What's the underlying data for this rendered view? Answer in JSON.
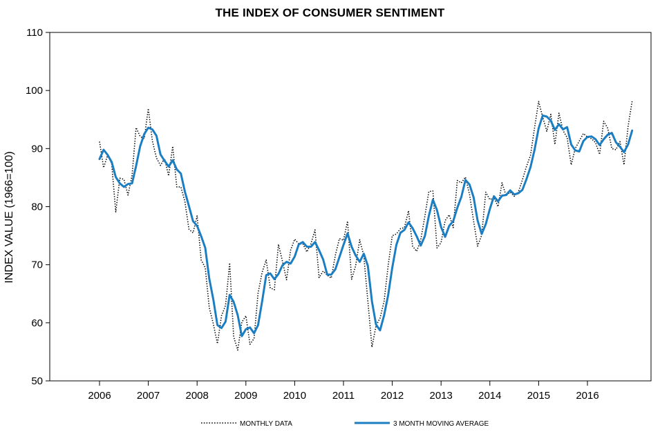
{
  "chart_data": {
    "type": "line",
    "title": "THE INDEX OF CONSUMER SENTIMENT",
    "ylabel": "INDEX VALUE (1966=100)",
    "xlabel": "",
    "ylim": [
      50,
      110
    ],
    "yticks": [
      50,
      60,
      70,
      80,
      90,
      100,
      110
    ],
    "xlim": [
      2005.9,
      2017.0
    ],
    "xticks": [
      2006,
      2007,
      2008,
      2009,
      2010,
      2011,
      2012,
      2013,
      2014,
      2015,
      2016
    ],
    "grid": false,
    "legend_position": "bottom",
    "series": [
      {
        "name": "MONTHLY DATA",
        "color": "#000000",
        "style": "dotted",
        "x_start": 2006.0,
        "x_step": 0.0833333,
        "values": [
          91.2,
          86.7,
          88.9,
          87.4,
          79.1,
          84.9,
          84.7,
          82.0,
          85.4,
          93.6,
          92.1,
          91.7,
          96.9,
          91.3,
          88.4,
          87.1,
          88.3,
          85.3,
          90.4,
          83.4,
          83.4,
          80.9,
          76.1,
          75.5,
          78.4,
          70.8,
          69.5,
          62.6,
          59.8,
          56.4,
          61.2,
          63.0,
          70.3,
          57.6,
          55.3,
          60.1,
          61.2,
          56.3,
          57.3,
          65.1,
          68.7,
          70.8,
          66.0,
          65.7,
          73.5,
          70.6,
          67.4,
          72.5,
          74.4,
          73.6,
          73.6,
          72.2,
          73.6,
          76.0,
          67.8,
          68.9,
          68.2,
          67.7,
          71.6,
          74.5,
          74.2,
          77.5,
          67.5,
          69.8,
          74.3,
          71.5,
          63.7,
          55.8,
          59.5,
          60.8,
          63.7,
          69.9,
          75.0,
          75.3,
          76.2,
          76.4,
          79.3,
          73.2,
          72.3,
          74.3,
          78.3,
          82.6,
          82.7,
          72.9,
          73.8,
          77.6,
          78.6,
          76.4,
          84.5,
          84.1,
          85.1,
          82.1,
          77.5,
          73.2,
          75.1,
          82.5,
          81.2,
          81.6,
          80.0,
          84.1,
          81.9,
          82.5,
          81.8,
          82.5,
          84.6,
          86.9,
          88.8,
          93.6,
          98.1,
          95.4,
          93.0,
          95.9,
          90.7,
          96.1,
          93.1,
          91.9,
          87.2,
          90.0,
          91.3,
          92.6,
          92.0,
          91.7,
          91.0,
          89.0,
          94.7,
          93.5,
          90.0,
          89.8,
          91.2,
          87.2,
          93.8,
          98.2
        ]
      },
      {
        "name": "3 MONTH MOVING AVERAGE",
        "color": "#1b7ec2",
        "style": "solid",
        "x_start": 2006.0,
        "x_step": 0.0833333,
        "values": [
          88.2,
          89.8,
          88.9,
          87.7,
          85.1,
          84.0,
          83.4,
          83.9,
          84.0,
          87.0,
          90.4,
          92.5,
          93.6,
          93.3,
          92.2,
          89.0,
          87.9,
          86.9,
          88.0,
          86.4,
          85.7,
          82.6,
          80.1,
          77.5,
          76.7,
          74.9,
          72.9,
          67.6,
          64.0,
          59.6,
          59.1,
          60.2,
          64.8,
          63.6,
          61.3,
          57.7,
          58.9,
          59.2,
          58.2,
          59.6,
          63.7,
          68.2,
          68.5,
          67.5,
          68.4,
          69.9,
          70.5,
          70.2,
          71.4,
          73.5,
          73.9,
          73.1,
          73.1,
          73.9,
          72.5,
          70.9,
          68.3,
          68.3,
          69.2,
          71.3,
          73.4,
          75.4,
          73.1,
          71.6,
          70.5,
          71.9,
          69.8,
          63.7,
          59.7,
          58.7,
          61.3,
          64.8,
          69.5,
          73.4,
          75.5,
          76.0,
          77.3,
          76.3,
          74.9,
          73.3,
          74.9,
          78.4,
          81.2,
          79.4,
          76.5,
          74.8,
          76.7,
          77.5,
          79.8,
          81.7,
          84.6,
          83.8,
          81.6,
          77.6,
          75.3,
          77.0,
          79.6,
          81.8,
          80.9,
          81.9,
          82.0,
          82.8,
          82.1,
          82.3,
          82.9,
          84.7,
          86.8,
          89.8,
          93.5,
          95.7,
          95.5,
          94.8,
          93.2,
          94.2,
          93.3,
          93.7,
          90.7,
          89.7,
          89.5,
          91.3,
          92.0,
          92.1,
          91.6,
          90.6,
          91.6,
          92.4,
          92.7,
          91.1,
          90.3,
          89.4,
          90.7,
          93.1
        ]
      }
    ]
  }
}
